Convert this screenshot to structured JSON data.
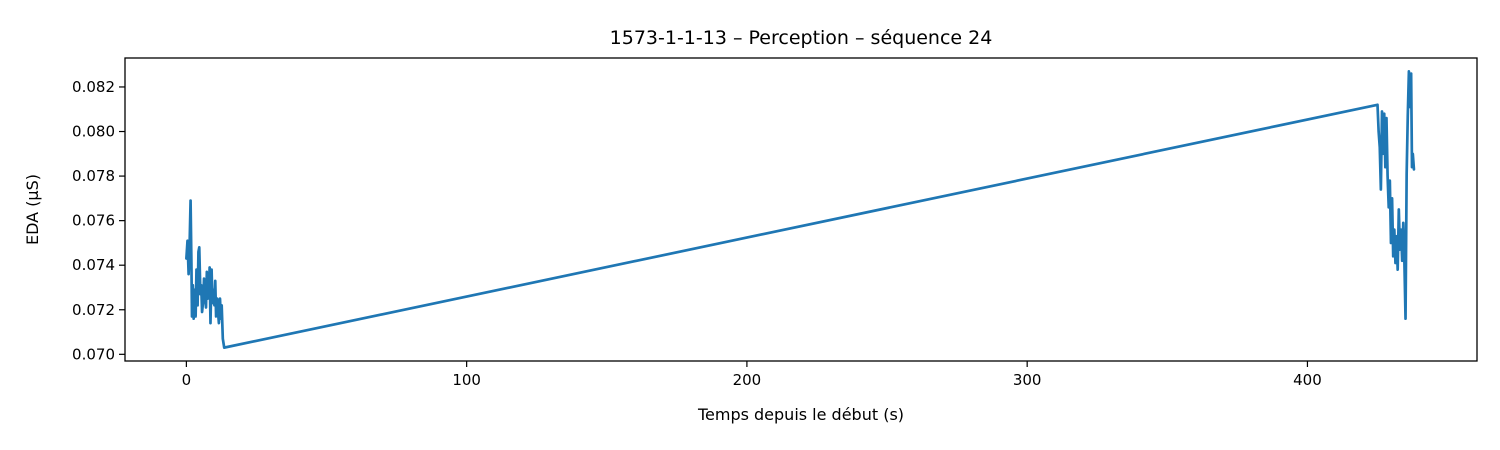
{
  "chart_data": {
    "type": "line",
    "title": "1573-1-1-13 – Perception – séquence 24",
    "xlabel": "Temps depuis le début (s)",
    "ylabel": "EDA (µS)",
    "xlim": [
      -21.9,
      460.5
    ],
    "ylim": [
      0.0697,
      0.0833
    ],
    "xticks": [
      0,
      100,
      200,
      300,
      400
    ],
    "xtick_labels": [
      "0",
      "100",
      "200",
      "300",
      "400"
    ],
    "yticks": [
      0.07,
      0.072,
      0.074,
      0.076,
      0.078,
      0.08,
      0.082
    ],
    "ytick_labels": [
      "0.070",
      "0.072",
      "0.074",
      "0.076",
      "0.078",
      "0.080",
      "0.082"
    ],
    "grid": false,
    "series": [
      {
        "color": "#1f77b4",
        "x": [
          0,
          0.4,
          0.8,
          1.2,
          1.5,
          1.8,
          2.0,
          2.3,
          2.6,
          3.0,
          3.3,
          3.6,
          4.0,
          4.3,
          4.6,
          5.0,
          5.3,
          5.6,
          6.0,
          6.3,
          6.6,
          7.0,
          7.3,
          7.6,
          8.0,
          8.3,
          8.6,
          9.0,
          9.3,
          9.6,
          10.0,
          10.3,
          10.6,
          11.0,
          11.3,
          11.6,
          12.0,
          12.3,
          12.6,
          13.0,
          13.5,
          425.0,
          425.4,
          425.8,
          426.2,
          426.6,
          427.0,
          427.4,
          427.8,
          428.2,
          428.6,
          429.0,
          429.4,
          429.8,
          430.2,
          430.6,
          431.0,
          431.4,
          431.8,
          432.2,
          432.6,
          433.0,
          433.4,
          433.8,
          434.2,
          434.6,
          435.0,
          435.4,
          435.8,
          436.2,
          436.6,
          437.0,
          437.3,
          437.6,
          438.0
        ],
        "y": [
          0.0743,
          0.0751,
          0.0736,
          0.0752,
          0.0769,
          0.0741,
          0.0717,
          0.0731,
          0.0716,
          0.0729,
          0.0717,
          0.0738,
          0.0722,
          0.0746,
          0.0748,
          0.0727,
          0.0731,
          0.0719,
          0.0724,
          0.0734,
          0.0727,
          0.0721,
          0.0737,
          0.0725,
          0.0727,
          0.0739,
          0.0714,
          0.0738,
          0.0723,
          0.0729,
          0.0722,
          0.0733,
          0.0717,
          0.0725,
          0.0719,
          0.0714,
          0.0725,
          0.0716,
          0.0722,
          0.0707,
          0.0703,
          0.0812,
          0.08,
          0.0793,
          0.0774,
          0.0809,
          0.079,
          0.0808,
          0.0784,
          0.0806,
          0.078,
          0.0766,
          0.0778,
          0.075,
          0.077,
          0.0744,
          0.0756,
          0.0741,
          0.0753,
          0.0738,
          0.0765,
          0.0747,
          0.0756,
          0.0742,
          0.0759,
          0.0741,
          0.0716,
          0.0781,
          0.0807,
          0.0827,
          0.0811,
          0.0826,
          0.0784,
          0.079,
          0.0783
        ]
      }
    ]
  }
}
